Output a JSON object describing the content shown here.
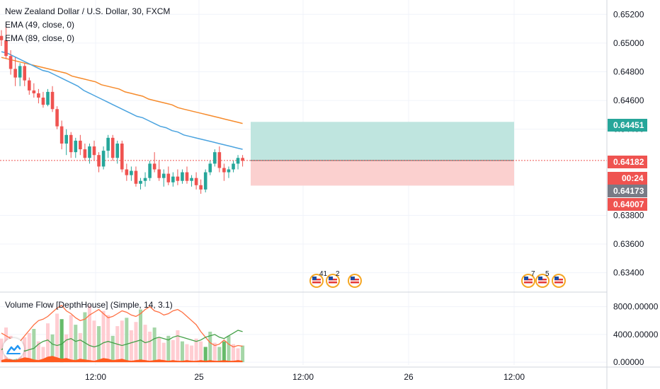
{
  "header": {
    "title": "New Zealand Dollar / U.S. Dollar, 30, FXCM",
    "ema1_label": "EMA (49, close, 0)",
    "ema2_label": "EMA (89, close, 0)",
    "volume_label": "Volume Flow [DepthHouse] (Simple, 14, 3.1)"
  },
  "colors": {
    "up": "#26a69a",
    "down": "#ef5350",
    "ema49": "#4aa3df",
    "ema89": "#f68b2c",
    "profit_zone": "#bfe5df",
    "loss_zone": "#fbd0cf",
    "last_price": "#ef5350",
    "current_price": "#787b86",
    "vol_fill": "#ff5a1f",
    "vol_red": "#ff7043",
    "vol_green": "#43a047"
  },
  "chart_data": [
    {
      "type": "candlestick",
      "title": "New Zealand Dollar / U.S. Dollar, 30, FXCM",
      "x_ticks": [
        "12:00",
        "25",
        "12:00",
        "26",
        "12:00"
      ],
      "y_ticks": [
        "0.65200",
        "0.65000",
        "0.64800",
        "0.64600",
        "0.64400",
        "0.63800",
        "0.63600",
        "0.63400"
      ],
      "ylim": [
        0.6328,
        0.653
      ],
      "candles": [
        [
          0.6505,
          0.6509,
          0.6498,
          0.6502
        ],
        [
          0.6502,
          0.6511,
          0.6489,
          0.6491
        ],
        [
          0.6491,
          0.6495,
          0.6478,
          0.6482
        ],
        [
          0.6482,
          0.649,
          0.647,
          0.6476
        ],
        [
          0.6476,
          0.6486,
          0.647,
          0.6484
        ],
        [
          0.6484,
          0.6486,
          0.647,
          0.6474
        ],
        [
          0.6474,
          0.6476,
          0.6464,
          0.6467
        ],
        [
          0.6467,
          0.6472,
          0.6462,
          0.6465
        ],
        [
          0.6465,
          0.6468,
          0.6458,
          0.6462
        ],
        [
          0.6462,
          0.6466,
          0.6455,
          0.6457
        ],
        [
          0.6457,
          0.6468,
          0.6456,
          0.6466
        ],
        [
          0.6466,
          0.647,
          0.6452,
          0.6454
        ],
        [
          0.6454,
          0.6456,
          0.644,
          0.6442
        ],
        [
          0.6442,
          0.6446,
          0.6426,
          0.643
        ],
        [
          0.643,
          0.644,
          0.6422,
          0.6436
        ],
        [
          0.6436,
          0.6438,
          0.642,
          0.6424
        ],
        [
          0.6424,
          0.6434,
          0.642,
          0.6432
        ],
        [
          0.6432,
          0.6436,
          0.6422,
          0.6426
        ],
        [
          0.6426,
          0.643,
          0.6418,
          0.642
        ],
        [
          0.642,
          0.643,
          0.6416,
          0.6428
        ],
        [
          0.6428,
          0.6432,
          0.6418,
          0.6422
        ],
        [
          0.6422,
          0.6424,
          0.641,
          0.6414
        ],
        [
          0.6414,
          0.6428,
          0.6412,
          0.6425
        ],
        [
          0.6425,
          0.6436,
          0.642,
          0.6434
        ],
        [
          0.6434,
          0.6436,
          0.6418,
          0.642
        ],
        [
          0.642,
          0.6432,
          0.6416,
          0.643
        ],
        [
          0.643,
          0.6432,
          0.641,
          0.6412
        ],
        [
          0.6412,
          0.6416,
          0.6404,
          0.6408
        ],
        [
          0.6408,
          0.6414,
          0.6404,
          0.6411
        ],
        [
          0.6411,
          0.6414,
          0.64,
          0.6402
        ],
        [
          0.6402,
          0.6406,
          0.6398,
          0.6404
        ],
        [
          0.6404,
          0.641,
          0.64,
          0.6406
        ],
        [
          0.6406,
          0.6418,
          0.6404,
          0.6416
        ],
        [
          0.6416,
          0.6424,
          0.641,
          0.6412
        ],
        [
          0.6412,
          0.6418,
          0.6404,
          0.6406
        ],
        [
          0.6406,
          0.6412,
          0.64,
          0.6409
        ],
        [
          0.6409,
          0.6414,
          0.6401,
          0.6403
        ],
        [
          0.6403,
          0.641,
          0.64,
          0.6407
        ],
        [
          0.6407,
          0.6412,
          0.6401,
          0.6404
        ],
        [
          0.6404,
          0.6412,
          0.6402,
          0.641
        ],
        [
          0.641,
          0.6414,
          0.6402,
          0.6404
        ],
        [
          0.6404,
          0.6408,
          0.64,
          0.6406
        ],
        [
          0.6406,
          0.641,
          0.6398,
          0.6401
        ],
        [
          0.6401,
          0.6405,
          0.6395,
          0.6398
        ],
        [
          0.6398,
          0.6412,
          0.6396,
          0.641
        ],
        [
          0.641,
          0.6418,
          0.6408,
          0.6416
        ],
        [
          0.6416,
          0.6426,
          0.6414,
          0.6424
        ],
        [
          0.6424,
          0.6428,
          0.641,
          0.6413
        ],
        [
          0.6413,
          0.6416,
          0.6404,
          0.641
        ],
        [
          0.641,
          0.6414,
          0.6406,
          0.6412
        ],
        [
          0.6412,
          0.6418,
          0.641,
          0.6416
        ],
        [
          0.6416,
          0.6422,
          0.6412,
          0.642
        ],
        [
          0.642,
          0.6422,
          0.6414,
          0.6418
        ]
      ],
      "ema49": [
        0.6494,
        0.6493,
        0.6491,
        0.6489,
        0.6487,
        0.6485,
        0.6483,
        0.6481,
        0.648,
        0.6478,
        0.6476,
        0.6474,
        0.6472,
        0.647,
        0.6467,
        0.6465,
        0.6463,
        0.6461,
        0.6459,
        0.6457,
        0.6455,
        0.6453,
        0.6451,
        0.6449,
        0.6448,
        0.6446,
        0.6444,
        0.6442,
        0.6441,
        0.6439,
        0.6438,
        0.6436,
        0.6435,
        0.6434,
        0.6433,
        0.6432,
        0.6431,
        0.643,
        0.6429,
        0.6428,
        0.6427,
        0.6426
      ],
      "ema89": [
        0.649,
        0.6489,
        0.6488,
        0.6487,
        0.6486,
        0.6485,
        0.6484,
        0.6483,
        0.6482,
        0.6481,
        0.648,
        0.6479,
        0.6477,
        0.6476,
        0.6475,
        0.6474,
        0.6473,
        0.6471,
        0.647,
        0.6469,
        0.6468,
        0.6466,
        0.6465,
        0.6464,
        0.6463,
        0.6461,
        0.646,
        0.6459,
        0.6458,
        0.6457,
        0.6455,
        0.6454,
        0.6453,
        0.6452,
        0.6451,
        0.645,
        0.6449,
        0.6448,
        0.6447,
        0.6446,
        0.6445,
        0.6444
      ],
      "position": {
        "target": 0.64451,
        "entry": 0.64182,
        "stop": 0.64007
      },
      "price_tags": [
        {
          "label": "0.64451",
          "value": 0.64451,
          "color": "#26a69a"
        },
        {
          "label": "0.64182",
          "value": 0.64182,
          "color": "#ef5350"
        },
        {
          "label": "00:24",
          "value": 0.64177,
          "color": "#ef5350"
        },
        {
          "label": "0.64173",
          "value": 0.64173,
          "color": "#787b86"
        },
        {
          "label": "0.64007",
          "value": 0.64007,
          "color": "#ef5350"
        }
      ],
      "events": [
        {
          "group": "41",
          "count": 2
        },
        {
          "group": "2",
          "count": 1
        },
        {
          "group": "",
          "count": 1
        },
        {
          "group": "7",
          "count": 1
        },
        {
          "group": "5",
          "count": 1
        },
        {
          "group": "",
          "count": 1
        }
      ]
    },
    {
      "type": "bar",
      "title": "Volume Flow [DepthHouse] (Simple, 14, 3.1)",
      "y_ticks": [
        "8000.00000",
        "4000.00000",
        "0.00000"
      ],
      "ylim": [
        -400,
        9800
      ],
      "bars": [
        3400,
        5000,
        3800,
        1200,
        2400,
        3600,
        4200,
        4800,
        3000,
        2200,
        5600,
        4000,
        7000,
        6200,
        4000,
        6800,
        5400,
        4200,
        7200,
        8200,
        6000,
        5200,
        7400,
        6800,
        3800,
        5200,
        6000,
        6400,
        4600,
        5800,
        7600,
        5400,
        4400,
        5000,
        3600,
        2800,
        3800,
        3200,
        4600,
        3000,
        2600,
        2400,
        3400,
        3000,
        2200,
        4400,
        2800,
        2200,
        3000,
        3800,
        2600,
        2000,
        2400
      ],
      "bar_colors": [
        "r",
        "r",
        "r",
        "g",
        "r",
        "r",
        "r",
        "g",
        "r",
        "r",
        "r",
        "g",
        "r",
        "g",
        "r",
        "r",
        "g",
        "r",
        "g",
        "r",
        "r",
        "g",
        "r",
        "r",
        "g",
        "r",
        "r",
        "g",
        "r",
        "r",
        "g",
        "r",
        "r",
        "g",
        "r",
        "r",
        "g",
        "r",
        "r",
        "g",
        "r",
        "r",
        "r",
        "r",
        "g",
        "g",
        "r",
        "g",
        "r",
        "g",
        "r",
        "r",
        "g"
      ],
      "sell_line": [
        4200,
        3800,
        3400,
        3200,
        3000,
        3800,
        4600,
        5400,
        6000,
        6200,
        6600,
        7200,
        7800,
        8200,
        7400,
        7000,
        6400,
        6000,
        6200,
        6800,
        7200,
        7600,
        7000,
        6400,
        6600,
        7000,
        7400,
        7200,
        6800,
        6600,
        7000,
        7600,
        8000,
        7400,
        7200,
        6800,
        7000,
        7400,
        7600,
        7200,
        6600,
        6000,
        5400,
        4400,
        3600,
        2800,
        2400,
        2600,
        3200,
        2600,
        2200,
        2400,
        2300
      ],
      "buy_line": [
        1800,
        2200,
        2400,
        2200,
        2000,
        1600,
        1800,
        2000,
        2600,
        3000,
        3200,
        2600,
        2400,
        2600,
        3200,
        3400,
        3000,
        3200,
        2800,
        2400,
        2200,
        2400,
        2800,
        3000,
        2800,
        2600,
        2400,
        2600,
        2800,
        3000,
        3200,
        2800,
        3000,
        3400,
        3600,
        3400,
        3200,
        3600,
        3800,
        3600,
        3400,
        3200,
        3000,
        3200,
        3600,
        3800,
        4000,
        3600,
        3400,
        3800,
        4200,
        4600,
        4400
      ],
      "area": [
        300,
        500,
        400,
        300,
        500,
        700,
        600,
        400,
        300,
        500,
        800,
        900,
        700,
        500,
        600,
        400,
        300,
        500,
        400,
        300,
        200,
        400,
        600,
        500,
        300,
        400,
        500,
        300,
        200,
        300,
        400,
        300,
        200,
        300,
        400,
        300,
        200,
        300,
        200,
        200,
        300,
        200,
        200,
        300,
        200,
        300,
        200,
        200,
        300,
        200,
        200,
        300,
        200
      ]
    }
  ]
}
